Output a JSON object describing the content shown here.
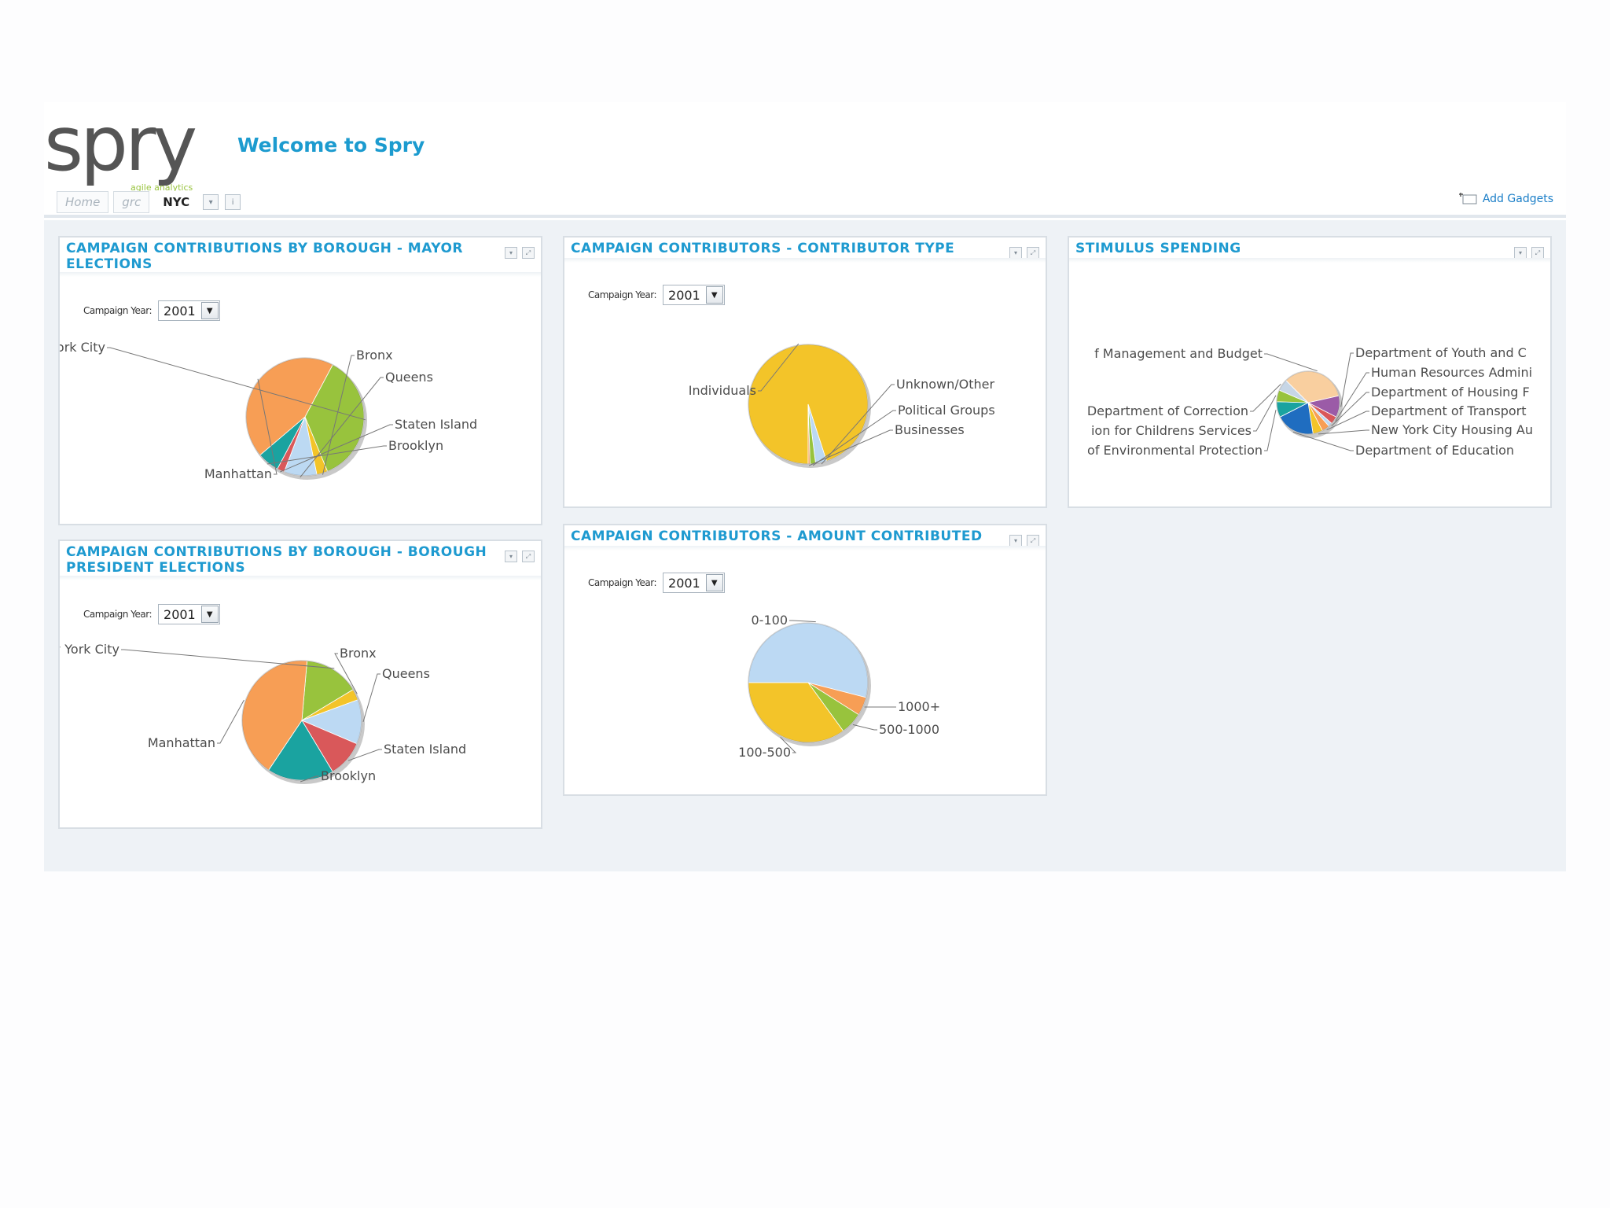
{
  "app": {
    "logo_text": "spry",
    "logo_tagline": "agile analytics",
    "welcome": "Welcome to Spry",
    "tabs": [
      {
        "label": "Home"
      },
      {
        "label": "grc"
      },
      {
        "label": "NYC"
      }
    ],
    "add_gadgets": "Add Gadgets"
  },
  "controls": {
    "campaign_year_label": "Campaign Year:",
    "campaign_year_value": "2001"
  },
  "colors": {
    "accent": "#1e9ad0",
    "green": "#98c33d",
    "yellow": "#f3c429",
    "light_blue": "#bcd9f3",
    "red": "#d9585a",
    "teal": "#1aa3a0",
    "orange": "#f79e55",
    "peach": "#f9cf9f",
    "purple": "#9b5ba7",
    "blue": "#1f6dc0"
  },
  "panels": {
    "mayor": {
      "title": "CAMPAIGN CONTRIBUTIONS BY BOROUGH - MAYOR ELECTIONS"
    },
    "contributor_type": {
      "title": "CAMPAIGN CONTRIBUTORS - CONTRIBUTOR TYPE"
    },
    "stimulus": {
      "title": "STIMULUS SPENDING"
    },
    "borough_president": {
      "title": "CAMPAIGN CONTRIBUTIONS BY BOROUGH - BOROUGH PRESIDENT ELECTIONS"
    },
    "amount": {
      "title": "CAMPAIGN CONTRIBUTORS - AMOUNT CONTRIBUTED"
    }
  },
  "chart_data": [
    {
      "id": "mayor",
      "type": "pie",
      "labels": [
        "Outside New York City",
        "Bronx",
        "Queens",
        "Staten Island",
        "Brooklyn",
        "Manhattan"
      ],
      "values": [
        36,
        3,
        9,
        2,
        6,
        44
      ],
      "colors": [
        "#98c33d",
        "#f3c429",
        "#bcd9f3",
        "#d9585a",
        "#1aa3a0",
        "#f79e55"
      ]
    },
    {
      "id": "contributor_type",
      "type": "pie",
      "labels": [
        "Individuals",
        "Unknown/Other",
        "Political Groups",
        "Businesses"
      ],
      "values": [
        95,
        3,
        1.5,
        0.5
      ],
      "colors": [
        "#f3c429",
        "#bcd9f3",
        "#98c33d",
        "#f79e55"
      ]
    },
    {
      "id": "stimulus",
      "type": "pie",
      "labels": [
        "f Management and Budget",
        "Department of Youth and C",
        "Human Resources Admini",
        "Department of Housing F",
        "Department of Transport",
        "New York City Housing Au",
        "Department of Education",
        "of Environmental Protection",
        "ion for Childrens Services",
        "Department of Correction"
      ],
      "values": [
        34,
        11,
        4,
        2,
        4,
        5,
        20,
        8,
        6,
        6
      ],
      "colors": [
        "#f9cf9f",
        "#9b5ba7",
        "#d9585a",
        "#bcd9f3",
        "#f79e55",
        "#f3c429",
        "#1f6dc0",
        "#1aa3a0",
        "#98c33d",
        "#c7d6e6"
      ]
    },
    {
      "id": "borough_president",
      "type": "pie",
      "labels": [
        "Outside New York City",
        "Bronx",
        "Queens",
        "Staten Island",
        "Brooklyn",
        "Manhattan"
      ],
      "values": [
        15,
        3,
        12,
        10,
        18,
        42
      ],
      "colors": [
        "#98c33d",
        "#f3c429",
        "#bcd9f3",
        "#d9585a",
        "#1aa3a0",
        "#f79e55"
      ]
    },
    {
      "id": "amount",
      "type": "pie",
      "labels": [
        "0-100",
        "1000+",
        "500-1000",
        "100-500"
      ],
      "values": [
        54,
        5,
        6,
        35
      ],
      "colors": [
        "#bcd9f3",
        "#f79e55",
        "#98c33d",
        "#f3c429"
      ]
    }
  ]
}
